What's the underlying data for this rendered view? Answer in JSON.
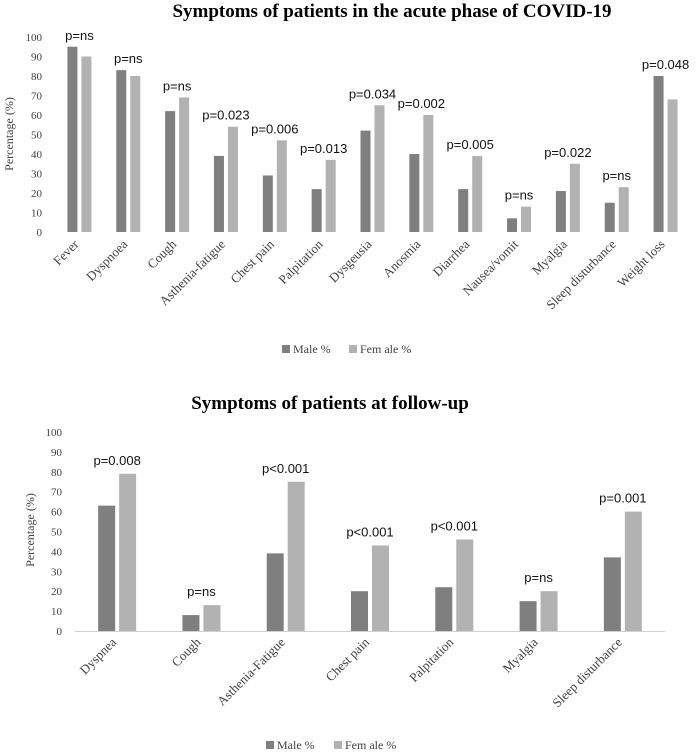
{
  "chart_data": [
    {
      "type": "bar",
      "title": "Symptoms of patients in the acute phase of COVID-19",
      "xlabel": "",
      "ylabel": "Percentage (%)",
      "ylim": [
        0,
        100
      ],
      "yticks": [
        0,
        10,
        20,
        30,
        40,
        50,
        60,
        70,
        80,
        90,
        100
      ],
      "categories": [
        "Fever",
        "Dyspnoea",
        "Cough",
        "Asthenia-fatigue",
        "Chest pain",
        "Palpitation",
        "Dysgeusia",
        "Anosmia",
        "Diarrhea",
        "Nausea/vomit",
        "Myalgia",
        "Sleep disturbance",
        "Weight loss"
      ],
      "series": [
        {
          "name": "Male %",
          "color": "#7f7f7f",
          "values": [
            95,
            83,
            62,
            39,
            29,
            22,
            52,
            40,
            22,
            7,
            21,
            15,
            80
          ]
        },
        {
          "name": "Fem ale %",
          "color": "#b2b2b2",
          "values": [
            90,
            80,
            69,
            54,
            47,
            37,
            65,
            60,
            39,
            13,
            35,
            23,
            68
          ]
        }
      ],
      "annotations": [
        "p=ns",
        "p=ns",
        "p=ns",
        "p=0.023",
        "p=0.006",
        "p=0.013",
        "p=0.034",
        "p=0.002",
        "p=0.005",
        "p=ns",
        "p=0.022",
        "p=ns",
        "p=0.048"
      ],
      "legend_position": "bottom-center"
    },
    {
      "type": "bar",
      "title": "Symptoms of patients at follow-up",
      "xlabel": "",
      "ylabel": "Percentage (%)",
      "ylim": [
        0,
        100
      ],
      "yticks": [
        0,
        10,
        20,
        30,
        40,
        50,
        60,
        70,
        80,
        90,
        100
      ],
      "categories": [
        "Dyspnea",
        "Cough",
        "Asthenia-Fatigue",
        "Chest pain",
        "Palpitation",
        "Myalgia",
        "Sleep disturbance"
      ],
      "series": [
        {
          "name": "Male %",
          "color": "#7f7f7f",
          "values": [
            63,
            8,
            39,
            20,
            22,
            15,
            37
          ]
        },
        {
          "name": "Fem ale %",
          "color": "#b2b2b2",
          "values": [
            79,
            13,
            75,
            43,
            46,
            20,
            60
          ]
        }
      ],
      "annotations": [
        "p=0.008",
        "p=ns",
        "p<0.001",
        "p<0.001",
        "p<0.001",
        "p=ns",
        "p=0.001"
      ],
      "legend_position": "bottom-center"
    }
  ]
}
